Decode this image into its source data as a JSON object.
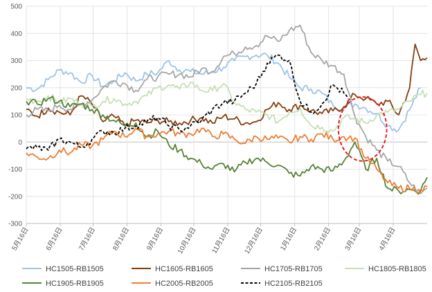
{
  "chart_data": {
    "type": "line",
    "title": "",
    "xlabel": "",
    "ylabel": "",
    "ylim": [
      -300,
      500
    ],
    "yticks": [
      -300,
      -200,
      -100,
      0,
      100,
      200,
      300,
      400,
      500
    ],
    "grid": true,
    "legend_position": "bottom",
    "x_range": [
      0,
      366
    ],
    "x_ticks": [
      {
        "label": "5月16日",
        "x": 0
      },
      {
        "label": "6月16日",
        "x": 31
      },
      {
        "label": "7月16日",
        "x": 61
      },
      {
        "label": "8月16日",
        "x": 92
      },
      {
        "label": "9月16日",
        "x": 123
      },
      {
        "label": "10月16日",
        "x": 153
      },
      {
        "label": "11月16日",
        "x": 184
      },
      {
        "label": "12月16日",
        "x": 214
      },
      {
        "label": "1月16日",
        "x": 245
      },
      {
        "label": "2月16日",
        "x": 276
      },
      {
        "label": "3月16日",
        "x": 304
      },
      {
        "label": "4月16日",
        "x": 335
      }
    ],
    "annotation": {
      "type": "ellipse",
      "style": "dashed",
      "color": "#e51c23",
      "x_center": 307,
      "y_center": 48,
      "x_radius": 17,
      "y_radius": 118
    },
    "series": [
      {
        "name": "HC1505-RB1505",
        "color": "#9dc3e6",
        "dashed": false,
        "points": [
          [
            0,
            200
          ],
          [
            10,
            195
          ],
          [
            20,
            230
          ],
          [
            30,
            265
          ],
          [
            40,
            255
          ],
          [
            50,
            220
          ],
          [
            60,
            245
          ],
          [
            70,
            205
          ],
          [
            80,
            225
          ],
          [
            90,
            255
          ],
          [
            100,
            225
          ],
          [
            110,
            250
          ],
          [
            120,
            255
          ],
          [
            130,
            300
          ],
          [
            140,
            265
          ],
          [
            150,
            260
          ],
          [
            160,
            250
          ],
          [
            170,
            258
          ],
          [
            180,
            275
          ],
          [
            190,
            300
          ],
          [
            200,
            315
          ],
          [
            210,
            320
          ],
          [
            220,
            320
          ],
          [
            230,
            290
          ],
          [
            240,
            240
          ],
          [
            250,
            200
          ],
          [
            260,
            195
          ],
          [
            270,
            180
          ],
          [
            280,
            135
          ],
          [
            290,
            125
          ],
          [
            300,
            140
          ],
          [
            310,
            125
          ],
          [
            320,
            105
          ],
          [
            330,
            60
          ],
          [
            340,
            45
          ],
          [
            350,
            120
          ],
          [
            360,
            200
          ]
        ]
      },
      {
        "name": "HC1605-RB1605",
        "color": "#843c0c",
        "dashed": false,
        "points": [
          [
            0,
            120
          ],
          [
            10,
            95
          ],
          [
            20,
            125
          ],
          [
            30,
            110
          ],
          [
            40,
            100
          ],
          [
            50,
            170
          ],
          [
            60,
            140
          ],
          [
            70,
            75
          ],
          [
            80,
            95
          ],
          [
            90,
            60
          ],
          [
            100,
            80
          ],
          [
            110,
            70
          ],
          [
            120,
            80
          ],
          [
            130,
            75
          ],
          [
            140,
            70
          ],
          [
            150,
            80
          ],
          [
            160,
            90
          ],
          [
            170,
            70
          ],
          [
            180,
            95
          ],
          [
            190,
            85
          ],
          [
            200,
            70
          ],
          [
            210,
            75
          ],
          [
            220,
            120
          ],
          [
            230,
            145
          ],
          [
            240,
            120
          ],
          [
            250,
            135
          ],
          [
            260,
            115
          ],
          [
            270,
            105
          ],
          [
            280,
            115
          ],
          [
            290,
            130
          ],
          [
            300,
            175
          ],
          [
            310,
            160
          ],
          [
            320,
            140
          ],
          [
            330,
            150
          ],
          [
            340,
            100
          ],
          [
            350,
            200
          ],
          [
            355,
            360
          ],
          [
            360,
            300
          ],
          [
            366,
            310
          ]
        ]
      },
      {
        "name": "HC1705-RB1705",
        "color": "#a5a5a5",
        "dashed": false,
        "points": [
          [
            0,
            100
          ],
          [
            10,
            120
          ],
          [
            20,
            115
          ],
          [
            30,
            135
          ],
          [
            40,
            120
          ],
          [
            50,
            140
          ],
          [
            60,
            155
          ],
          [
            70,
            200
          ],
          [
            80,
            225
          ],
          [
            90,
            215
          ],
          [
            100,
            190
          ],
          [
            110,
            230
          ],
          [
            120,
            240
          ],
          [
            130,
            250
          ],
          [
            140,
            250
          ],
          [
            150,
            240
          ],
          [
            160,
            270
          ],
          [
            170,
            260
          ],
          [
            180,
            315
          ],
          [
            190,
            325
          ],
          [
            200,
            350
          ],
          [
            210,
            355
          ],
          [
            220,
            390
          ],
          [
            230,
            370
          ],
          [
            240,
            410
          ],
          [
            250,
            430
          ],
          [
            260,
            330
          ],
          [
            270,
            300
          ],
          [
            280,
            280
          ],
          [
            290,
            250
          ],
          [
            300,
            95
          ],
          [
            310,
            20
          ],
          [
            320,
            -30
          ],
          [
            330,
            -70
          ],
          [
            340,
            -90
          ],
          [
            350,
            -150
          ],
          [
            360,
            -190
          ],
          [
            366,
            -170
          ]
        ]
      },
      {
        "name": "HC1805-RB1805",
        "color": "#c5e0b4",
        "dashed": false,
        "points": [
          [
            0,
            160
          ],
          [
            10,
            150
          ],
          [
            20,
            170
          ],
          [
            30,
            145
          ],
          [
            40,
            160
          ],
          [
            50,
            140
          ],
          [
            60,
            130
          ],
          [
            70,
            150
          ],
          [
            80,
            160
          ],
          [
            90,
            140
          ],
          [
            100,
            150
          ],
          [
            110,
            170
          ],
          [
            120,
            200
          ],
          [
            130,
            210
          ],
          [
            140,
            195
          ],
          [
            150,
            220
          ],
          [
            160,
            190
          ],
          [
            170,
            190
          ],
          [
            180,
            215
          ],
          [
            190,
            145
          ],
          [
            200,
            120
          ],
          [
            210,
            110
          ],
          [
            220,
            100
          ],
          [
            230,
            75
          ],
          [
            240,
            110
          ],
          [
            250,
            125
          ],
          [
            260,
            60
          ],
          [
            270,
            55
          ],
          [
            280,
            40
          ],
          [
            290,
            90
          ],
          [
            300,
            85
          ],
          [
            310,
            70
          ],
          [
            320,
            100
          ],
          [
            330,
            110
          ],
          [
            340,
            120
          ],
          [
            350,
            150
          ],
          [
            360,
            175
          ],
          [
            366,
            180
          ]
        ]
      },
      {
        "name": "HC1905-RB1905",
        "color": "#548235",
        "dashed": false,
        "points": [
          [
            0,
            150
          ],
          [
            10,
            140
          ],
          [
            20,
            160
          ],
          [
            30,
            150
          ],
          [
            40,
            130
          ],
          [
            50,
            140
          ],
          [
            60,
            120
          ],
          [
            70,
            100
          ],
          [
            80,
            80
          ],
          [
            90,
            60
          ],
          [
            100,
            70
          ],
          [
            110,
            20
          ],
          [
            120,
            40
          ],
          [
            130,
            -10
          ],
          [
            140,
            -30
          ],
          [
            150,
            -60
          ],
          [
            160,
            -80
          ],
          [
            170,
            -100
          ],
          [
            180,
            -80
          ],
          [
            190,
            -110
          ],
          [
            200,
            -75
          ],
          [
            210,
            -60
          ],
          [
            220,
            -75
          ],
          [
            230,
            -85
          ],
          [
            240,
            -115
          ],
          [
            250,
            -125
          ],
          [
            260,
            -90
          ],
          [
            270,
            -100
          ],
          [
            280,
            -105
          ],
          [
            290,
            -70
          ],
          [
            300,
            0
          ],
          [
            310,
            -100
          ],
          [
            320,
            -60
          ],
          [
            330,
            -170
          ],
          [
            340,
            -180
          ],
          [
            350,
            -175
          ],
          [
            360,
            -180
          ],
          [
            366,
            -130
          ]
        ]
      },
      {
        "name": "HC2005-RB2005",
        "color": "#ed7d31",
        "dashed": false,
        "points": [
          [
            0,
            -40
          ],
          [
            10,
            -55
          ],
          [
            20,
            -60
          ],
          [
            30,
            -30
          ],
          [
            40,
            -40
          ],
          [
            50,
            -10
          ],
          [
            60,
            -15
          ],
          [
            70,
            10
          ],
          [
            80,
            40
          ],
          [
            90,
            20
          ],
          [
            100,
            50
          ],
          [
            110,
            20
          ],
          [
            120,
            30
          ],
          [
            130,
            40
          ],
          [
            140,
            30
          ],
          [
            150,
            30
          ],
          [
            160,
            50
          ],
          [
            170,
            20
          ],
          [
            180,
            30
          ],
          [
            190,
            10
          ],
          [
            200,
            -5
          ],
          [
            210,
            20
          ],
          [
            220,
            10
          ],
          [
            230,
            15
          ],
          [
            240,
            0
          ],
          [
            250,
            20
          ],
          [
            260,
            10
          ],
          [
            270,
            30
          ],
          [
            280,
            10
          ],
          [
            290,
            20
          ],
          [
            300,
            15
          ],
          [
            310,
            -60
          ],
          [
            320,
            -100
          ],
          [
            330,
            -150
          ],
          [
            340,
            -170
          ],
          [
            350,
            -170
          ],
          [
            360,
            -175
          ],
          [
            366,
            -165
          ]
        ]
      },
      {
        "name": "HC2105-RB2105",
        "color": "#000000",
        "dashed": true,
        "points": [
          [
            0,
            -25
          ],
          [
            10,
            -20
          ],
          [
            20,
            -30
          ],
          [
            30,
            10
          ],
          [
            40,
            0
          ],
          [
            50,
            -20
          ],
          [
            60,
            10
          ],
          [
            70,
            40
          ],
          [
            80,
            35
          ],
          [
            90,
            50
          ],
          [
            100,
            60
          ],
          [
            110,
            75
          ],
          [
            120,
            90
          ],
          [
            130,
            60
          ],
          [
            140,
            45
          ],
          [
            150,
            60
          ],
          [
            160,
            80
          ],
          [
            170,
            120
          ],
          [
            180,
            145
          ],
          [
            190,
            150
          ],
          [
            200,
            180
          ],
          [
            210,
            215
          ],
          [
            220,
            290
          ],
          [
            230,
            320
          ],
          [
            240,
            300
          ],
          [
            250,
            150
          ],
          [
            260,
            110
          ],
          [
            270,
            140
          ],
          [
            280,
            210
          ],
          [
            290,
            180
          ],
          [
            294,
            160
          ]
        ]
      }
    ]
  }
}
